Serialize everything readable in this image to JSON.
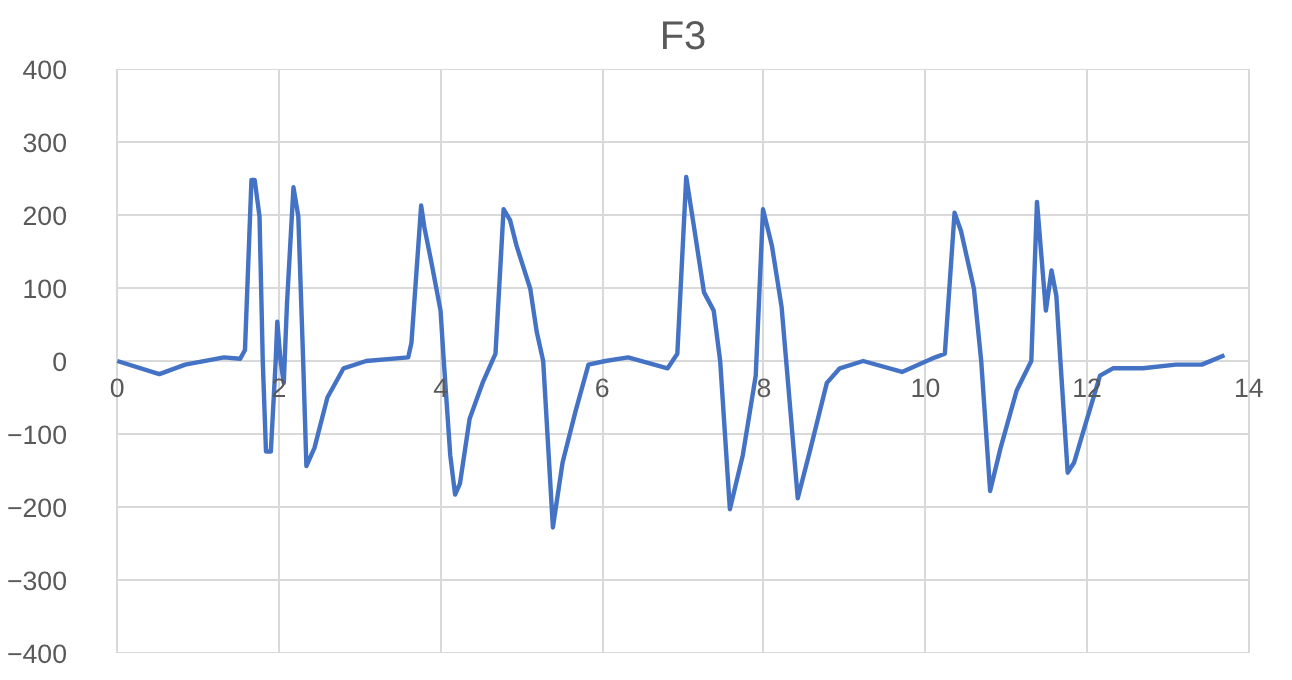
{
  "chart_data": {
    "type": "line",
    "title": "F3",
    "x": [
      0,
      0.52,
      0.84,
      1.32,
      1.52,
      1.58,
      1.66,
      1.7,
      1.76,
      1.8,
      1.84,
      1.9,
      1.96,
      1.98,
      2.02,
      2.06,
      2.1,
      2.18,
      2.24,
      2.3,
      2.34,
      2.44,
      2.6,
      2.8,
      3.08,
      3.6,
      3.64,
      3.76,
      3.8,
      3.88,
      4.0,
      4.04,
      4.12,
      4.18,
      4.24,
      4.36,
      4.52,
      4.68,
      4.78,
      4.86,
      4.94,
      5.11,
      5.19,
      5.27,
      5.39,
      5.51,
      5.67,
      5.83,
      6.04,
      6.32,
      6.81,
      6.93,
      7.04,
      7.13,
      7.26,
      7.38,
      7.46,
      7.58,
      7.74,
      7.9,
      7.99,
      8.1,
      8.22,
      8.3,
      8.42,
      8.58,
      8.78,
      8.94,
      9.23,
      9.71,
      10.12,
      10.24,
      10.36,
      10.44,
      10.6,
      10.69,
      10.8,
      10.93,
      11.13,
      11.31,
      11.38,
      11.49,
      11.56,
      11.62,
      11.67,
      11.76,
      11.84,
      11.96,
      12.16,
      12.32,
      12.69,
      13.1,
      13.42,
      13.7
    ],
    "series": [
      {
        "color": "#4472c4",
        "values": [
          0,
          -18,
          -5,
          5,
          3,
          15,
          248,
          248,
          198,
          0,
          -124,
          -124,
          0,
          54,
          0,
          -30,
          79,
          238,
          198,
          0,
          -144,
          -119,
          -50,
          -10,
          0,
          5,
          25,
          213,
          183,
          139,
          69,
          0,
          -129,
          -183,
          -168,
          -79,
          -30,
          10,
          208,
          193,
          158,
          99,
          40,
          0,
          -228,
          -139,
          -69,
          -5,
          0,
          5,
          -10,
          10,
          252,
          188,
          94,
          69,
          0,
          -203,
          -129,
          -20,
          208,
          158,
          74,
          -30,
          -188,
          -119,
          -30,
          -10,
          0,
          -15,
          5,
          10,
          203,
          178,
          99,
          0,
          -178,
          -119,
          -40,
          0,
          218,
          69,
          124,
          89,
          0,
          -153,
          -139,
          -94,
          -20,
          -10,
          -10,
          -5,
          -5,
          8
        ]
      }
    ],
    "xlim": [
      0,
      14
    ],
    "xticks": [
      0,
      2,
      4,
      6,
      8,
      10,
      12,
      14
    ],
    "ylim": [
      -400,
      400
    ],
    "yticks": [
      -400,
      -300,
      -200,
      -100,
      0,
      100,
      200,
      300,
      400
    ],
    "grid": true
  }
}
